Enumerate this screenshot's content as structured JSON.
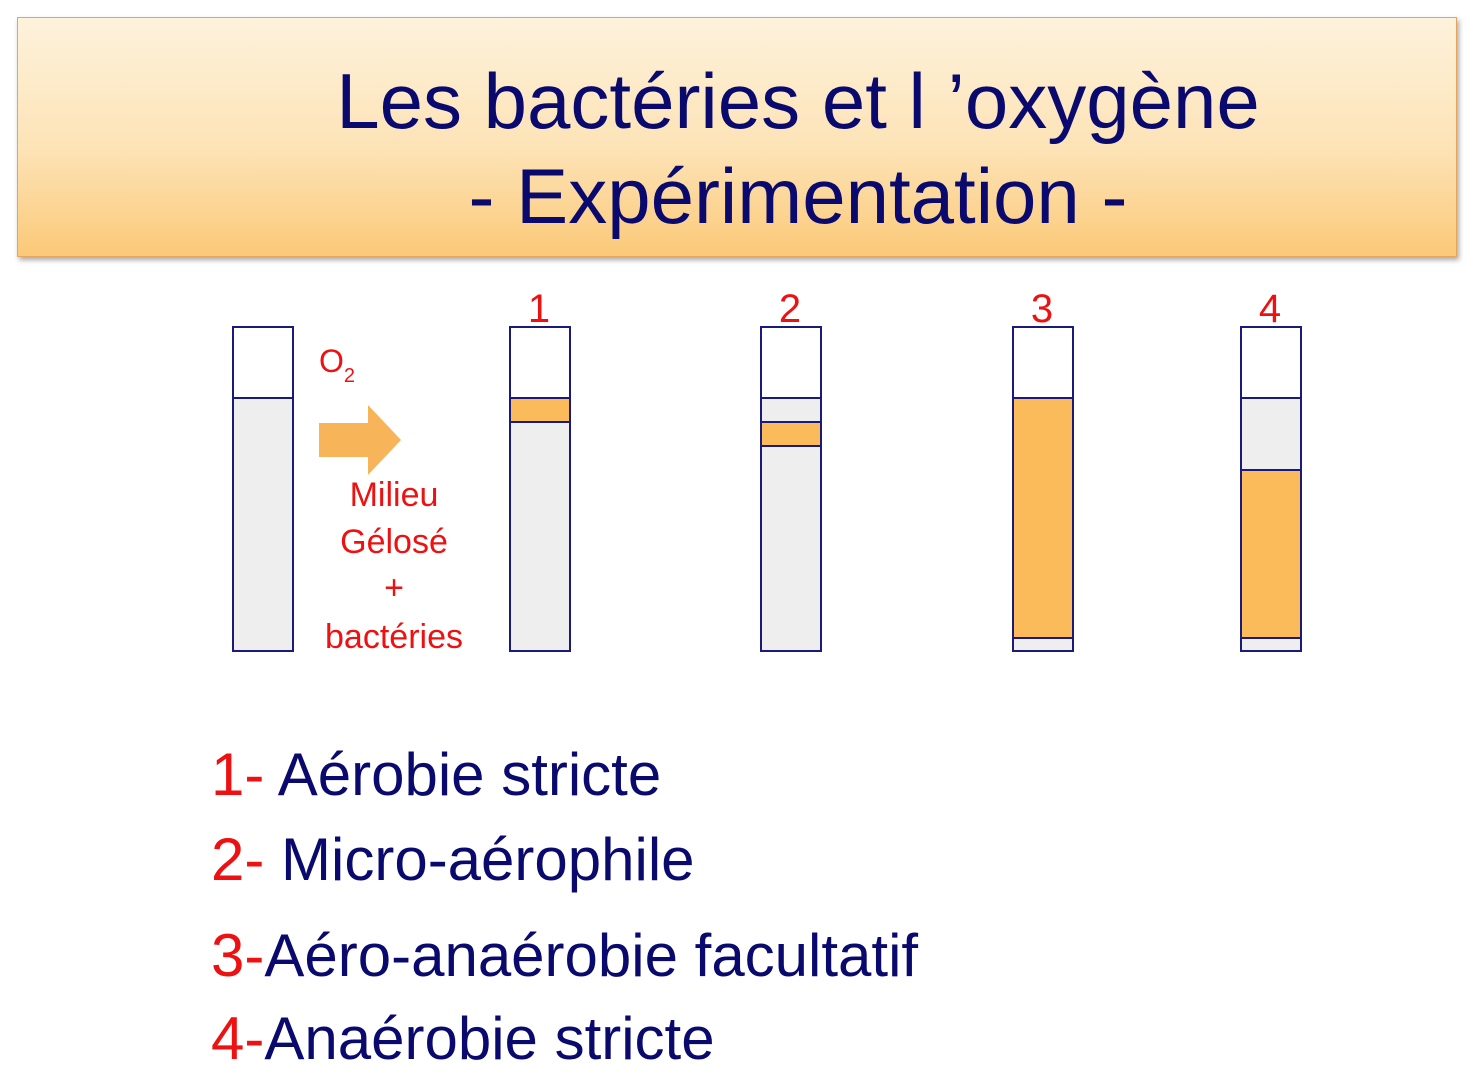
{
  "title": {
    "line1": "Les bactéries et l ’oxygène",
    "line2": "- Expérimentation -"
  },
  "diagram": {
    "gas_label": "O",
    "gas_subscript": "2",
    "medium_label": [
      "Milieu",
      "Gélosé",
      "+",
      "bactéries"
    ],
    "tube_numbers": [
      "1",
      "2",
      "3",
      "4"
    ]
  },
  "legend": [
    {
      "num": "1-",
      "text": " Aérobie stricte"
    },
    {
      "num": "2-",
      "text": " Micro-aérophile"
    },
    {
      "num": "3-",
      "text": "Aéro-anaérobie facultatif"
    },
    {
      "num": "4-",
      "text": "Anaérobie stricte"
    }
  ],
  "colors": {
    "title_text": "#0a0a6e",
    "accent_red": "#ee1111",
    "tube_border": "#1a1a7a",
    "agar": "#eeeeee",
    "bacteria": "#fbbb5a",
    "arrow": "#f7b458"
  }
}
